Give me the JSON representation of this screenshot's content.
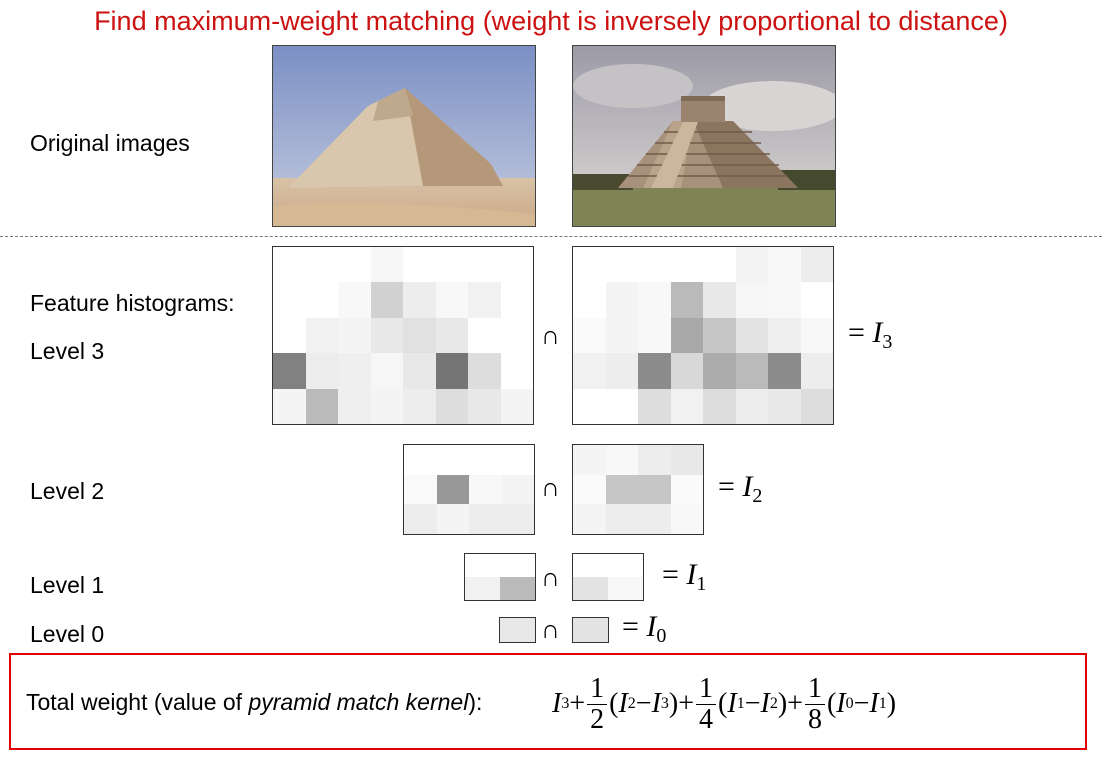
{
  "title": "Find maximum-weight matching (weight is inversely proportional to distance)",
  "labels": {
    "original": "Original images",
    "features": "Feature histograms:",
    "level3": "Level 3",
    "level2": "Level 2",
    "level1": "Level 1",
    "level0": "Level 0"
  },
  "symbols": {
    "intersect": "∩",
    "I": "I",
    "eq_prefix": "= "
  },
  "subs": [
    "3",
    "2",
    "1",
    "0"
  ],
  "total": {
    "prefix": "Total weight (value of ",
    "kernel": "pyramid match kernel",
    "suffix": "):"
  },
  "formula": {
    "plus": "+",
    "minus": "−",
    "open": "(",
    "close": ")",
    "one": "1",
    "d2": "2",
    "d4": "4",
    "d8": "8"
  },
  "histograms": {
    "l3a": {
      "cols": 8,
      "rows": 5,
      "cells": [
        [
          0,
          0,
          0,
          0.04,
          0,
          0,
          0,
          0
        ],
        [
          0,
          0,
          0.03,
          0.2,
          0.08,
          0.03,
          0.06,
          0
        ],
        [
          0,
          0.06,
          0.05,
          0.1,
          0.13,
          0.1,
          0,
          0
        ],
        [
          0.55,
          0.08,
          0.07,
          0.04,
          0.1,
          0.6,
          0.15,
          0
        ],
        [
          0.05,
          0.3,
          0.07,
          0.05,
          0.08,
          0.15,
          0.1,
          0.05
        ]
      ]
    },
    "l3b": {
      "cols": 8,
      "rows": 5,
      "cells": [
        [
          0,
          0,
          0,
          0,
          0,
          0.05,
          0.03,
          0.08
        ],
        [
          0,
          0.05,
          0.03,
          0.3,
          0.1,
          0.04,
          0.03,
          0
        ],
        [
          0.02,
          0.05,
          0.03,
          0.38,
          0.25,
          0.12,
          0.07,
          0.03
        ],
        [
          0.06,
          0.08,
          0.5,
          0.17,
          0.36,
          0.3,
          0.5,
          0.08
        ],
        [
          0,
          0,
          0.15,
          0.06,
          0.15,
          0.08,
          0.1,
          0.15
        ]
      ]
    },
    "l2a": {
      "cols": 4,
      "rows": 3,
      "cells": [
        [
          0,
          0,
          0,
          0
        ],
        [
          0.02,
          0.45,
          0.03,
          0.05
        ],
        [
          0.08,
          0.05,
          0.08,
          0.08
        ]
      ]
    },
    "l2b": {
      "cols": 4,
      "rows": 3,
      "cells": [
        [
          0.05,
          0.03,
          0.08,
          0.1
        ],
        [
          0.02,
          0.25,
          0.25,
          0.02
        ],
        [
          0.05,
          0.08,
          0.08,
          0.03
        ]
      ]
    },
    "l1a": {
      "cols": 2,
      "rows": 2,
      "cells": [
        [
          0,
          0
        ],
        [
          0.06,
          0.3
        ]
      ]
    },
    "l1b": {
      "cols": 2,
      "rows": 2,
      "cells": [
        [
          0,
          0
        ],
        [
          0.12,
          0.03
        ]
      ]
    },
    "l0a": {
      "cols": 1,
      "rows": 1,
      "cells": [
        [
          0.1
        ]
      ]
    },
    "l0b": {
      "cols": 1,
      "rows": 1,
      "cells": [
        [
          0.12
        ]
      ]
    }
  }
}
